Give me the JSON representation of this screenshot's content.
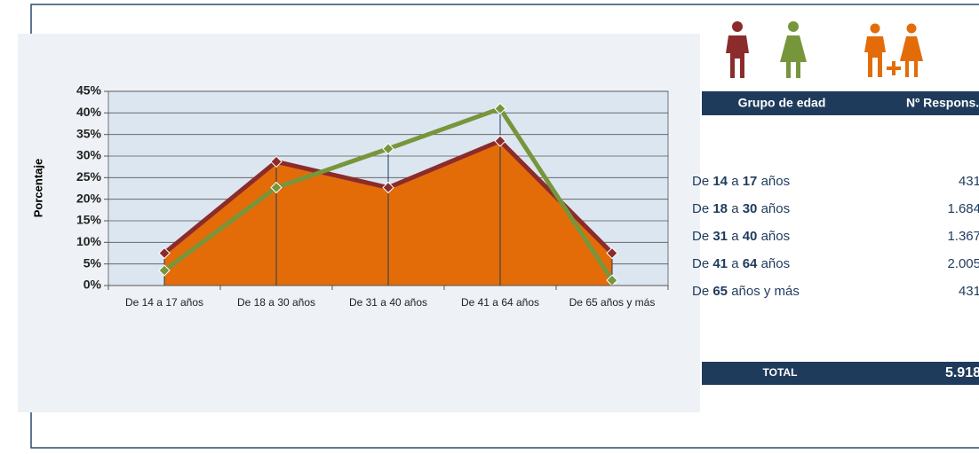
{
  "chart_data": {
    "type": "area_line",
    "y_label": "Porcentaje",
    "categories": [
      "De 14 a 17 años",
      "De 18 a 30 años",
      "De 31 a 40 años",
      "De 41 a 64 años",
      "De 65 años y más"
    ],
    "series": [
      {
        "color": "#e36c09",
        "kind": "area",
        "values": [
          7.3,
          28.5,
          23.1,
          33.9,
          7.3
        ]
      },
      {
        "color": "#8b2c2c",
        "kind": "line",
        "values": [
          7.5,
          28.7,
          22.7,
          33.5,
          7.5
        ]
      },
      {
        "color": "#77963c",
        "kind": "line",
        "values": [
          3.5,
          22.7,
          31.7,
          41,
          1.2
        ]
      }
    ],
    "ylim": [
      0,
      45
    ],
    "yticks": [
      {
        "value": 0,
        "label": "0%"
      },
      {
        "value": 5,
        "label": "5%"
      },
      {
        "value": 10,
        "label": "10%"
      },
      {
        "value": 15,
        "label": "15%"
      },
      {
        "value": 20,
        "label": "20%"
      },
      {
        "value": 25,
        "label": "25%"
      },
      {
        "value": 30,
        "label": "30%"
      },
      {
        "value": 35,
        "label": "35%"
      },
      {
        "value": 40,
        "label": "40%"
      },
      {
        "value": 45,
        "label": "45%"
      }
    ],
    "grid": true
  },
  "table": {
    "header": [
      "Grupo de edad",
      "Nº Respons."
    ],
    "rows": [
      [
        [
          "De ",
          "14",
          " a ",
          "17",
          " años"
        ],
        "431"
      ],
      [
        [
          "De ",
          "18",
          " a ",
          "30",
          " años"
        ],
        "1.684"
      ],
      [
        [
          "De ",
          "31",
          " a ",
          "40",
          " años"
        ],
        "1.367"
      ],
      [
        [
          "De ",
          "41",
          " a ",
          "64",
          " años"
        ],
        "2.005"
      ],
      [
        [
          "De ",
          "65",
          " años y más"
        ],
        "431"
      ]
    ],
    "total": [
      "TOTAL",
      "5.918"
    ]
  }
}
